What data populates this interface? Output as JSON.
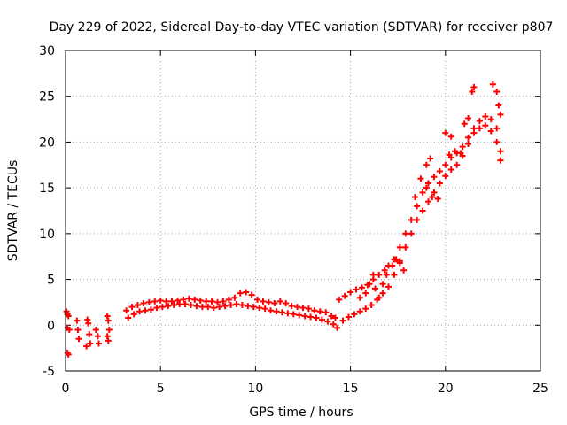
{
  "chart_data": {
    "type": "scatter",
    "title": "Day 229 of 2022, Sidereal Day-to-day VTEC variation (SDTVAR) for receiver p807",
    "xlabel": "GPS time / hours",
    "ylabel": "SDTVAR / TECUs",
    "xlim": [
      0,
      25
    ],
    "ylim": [
      -5,
      30
    ],
    "xticks": [
      "0",
      "5",
      "10",
      "15",
      "20",
      "25"
    ],
    "yticks": [
      "-5",
      "0",
      "5",
      "10",
      "15",
      "20",
      "25",
      "30"
    ],
    "grid": true,
    "marker": "+",
    "color": "#ff0000",
    "series": [
      {
        "name": "main-upper",
        "points": [
          [
            3.2,
            1.6
          ],
          [
            3.5,
            2.0
          ],
          [
            3.8,
            2.2
          ],
          [
            4.1,
            2.4
          ],
          [
            4.4,
            2.5
          ],
          [
            4.7,
            2.6
          ],
          [
            5.0,
            2.7
          ],
          [
            5.3,
            2.6
          ],
          [
            5.6,
            2.6
          ],
          [
            5.9,
            2.7
          ],
          [
            6.2,
            2.8
          ],
          [
            6.5,
            2.9
          ],
          [
            6.8,
            2.8
          ],
          [
            7.1,
            2.7
          ],
          [
            7.4,
            2.6
          ],
          [
            7.7,
            2.6
          ],
          [
            8.0,
            2.5
          ],
          [
            8.3,
            2.6
          ],
          [
            8.6,
            2.8
          ],
          [
            8.9,
            3.0
          ],
          [
            9.2,
            3.5
          ],
          [
            9.5,
            3.6
          ],
          [
            9.8,
            3.3
          ],
          [
            10.1,
            2.8
          ],
          [
            10.4,
            2.6
          ],
          [
            10.7,
            2.5
          ],
          [
            11.0,
            2.4
          ],
          [
            11.3,
            2.6
          ],
          [
            11.6,
            2.4
          ],
          [
            11.9,
            2.1
          ],
          [
            12.2,
            2.0
          ],
          [
            12.5,
            1.9
          ],
          [
            12.8,
            1.8
          ],
          [
            13.1,
            1.6
          ],
          [
            13.4,
            1.5
          ],
          [
            13.7,
            1.4
          ],
          [
            14.0,
            1.0
          ],
          [
            14.2,
            0.8
          ],
          [
            14.4,
            2.8
          ],
          [
            14.7,
            3.2
          ],
          [
            15.0,
            3.6
          ],
          [
            15.3,
            3.9
          ],
          [
            15.6,
            4.1
          ],
          [
            15.9,
            4.4
          ],
          [
            16.2,
            5.0
          ],
          [
            16.5,
            5.5
          ],
          [
            16.8,
            6.0
          ],
          [
            17.0,
            6.5
          ],
          [
            17.3,
            7.2
          ],
          [
            17.6,
            8.5
          ],
          [
            17.9,
            10.0
          ],
          [
            18.2,
            11.5
          ],
          [
            18.5,
            13.0
          ],
          [
            18.8,
            14.5
          ],
          [
            19.1,
            15.5
          ],
          [
            19.4,
            16.2
          ],
          [
            19.7,
            16.8
          ],
          [
            20.0,
            17.5
          ],
          [
            20.3,
            18.3
          ],
          [
            20.6,
            18.8
          ],
          [
            20.9,
            19.5
          ],
          [
            21.2,
            20.5
          ],
          [
            21.5,
            21.5
          ],
          [
            21.8,
            22.3
          ],
          [
            22.1,
            22.8
          ],
          [
            22.4,
            22.5
          ],
          [
            22.7,
            21.5
          ],
          [
            22.9,
            19.0
          ]
        ]
      },
      {
        "name": "main-lower",
        "points": [
          [
            3.3,
            0.8
          ],
          [
            3.6,
            1.2
          ],
          [
            3.9,
            1.5
          ],
          [
            4.2,
            1.6
          ],
          [
            4.5,
            1.7
          ],
          [
            4.8,
            1.9
          ],
          [
            5.1,
            2.0
          ],
          [
            5.4,
            2.1
          ],
          [
            5.7,
            2.2
          ],
          [
            6.0,
            2.3
          ],
          [
            6.3,
            2.3
          ],
          [
            6.6,
            2.2
          ],
          [
            6.9,
            2.1
          ],
          [
            7.2,
            2.0
          ],
          [
            7.5,
            2.0
          ],
          [
            7.8,
            1.9
          ],
          [
            8.1,
            2.0
          ],
          [
            8.4,
            2.1
          ],
          [
            8.7,
            2.2
          ],
          [
            9.0,
            2.3
          ],
          [
            9.3,
            2.2
          ],
          [
            9.6,
            2.1
          ],
          [
            9.9,
            2.0
          ],
          [
            10.2,
            1.9
          ],
          [
            10.5,
            1.8
          ],
          [
            10.8,
            1.6
          ],
          [
            11.1,
            1.5
          ],
          [
            11.4,
            1.4
          ],
          [
            11.7,
            1.3
          ],
          [
            12.0,
            1.2
          ],
          [
            12.3,
            1.1
          ],
          [
            12.6,
            1.0
          ],
          [
            12.9,
            0.9
          ],
          [
            13.2,
            0.8
          ],
          [
            13.5,
            0.6
          ],
          [
            13.8,
            0.4
          ],
          [
            14.1,
            0.1
          ],
          [
            14.3,
            -0.3
          ],
          [
            14.6,
            0.5
          ],
          [
            14.9,
            0.9
          ],
          [
            15.2,
            1.2
          ],
          [
            15.5,
            1.5
          ],
          [
            15.8,
            1.8
          ],
          [
            16.1,
            2.2
          ],
          [
            16.4,
            2.8
          ],
          [
            16.7,
            3.5
          ],
          [
            17.0,
            4.2
          ],
          [
            17.3,
            5.5
          ],
          [
            17.6,
            7.0
          ],
          [
            17.9,
            8.5
          ],
          [
            18.2,
            10.0
          ],
          [
            18.5,
            11.5
          ],
          [
            18.8,
            12.5
          ],
          [
            19.1,
            13.5
          ],
          [
            19.4,
            14.5
          ],
          [
            19.7,
            15.5
          ],
          [
            20.0,
            16.3
          ],
          [
            20.3,
            17.0
          ],
          [
            20.6,
            17.5
          ],
          [
            20.9,
            18.5
          ],
          [
            21.2,
            19.8
          ],
          [
            21.5,
            21.0
          ],
          [
            21.8,
            21.5
          ],
          [
            22.1,
            21.8
          ],
          [
            22.4,
            21.2
          ],
          [
            22.7,
            20.0
          ],
          [
            22.9,
            18.0
          ]
        ]
      },
      {
        "name": "secondary-arcs",
        "points": [
          [
            15.5,
            3.0
          ],
          [
            15.8,
            3.5
          ],
          [
            16.0,
            4.5
          ],
          [
            16.2,
            5.5
          ],
          [
            16.3,
            4.0
          ],
          [
            16.5,
            3.0
          ],
          [
            16.7,
            4.5
          ],
          [
            16.9,
            5.5
          ],
          [
            17.2,
            6.5
          ],
          [
            17.4,
            7.2
          ],
          [
            17.6,
            6.8
          ],
          [
            17.8,
            6.0
          ],
          [
            18.4,
            14.0
          ],
          [
            18.7,
            16.0
          ],
          [
            19.0,
            17.5
          ],
          [
            19.2,
            18.2
          ],
          [
            19.0,
            15.0
          ],
          [
            19.3,
            14.0
          ],
          [
            19.6,
            13.8
          ],
          [
            20.2,
            18.6
          ],
          [
            20.5,
            19.0
          ],
          [
            20.8,
            18.8
          ],
          [
            20.0,
            21.0
          ],
          [
            20.3,
            20.6
          ],
          [
            21.0,
            22.0
          ],
          [
            21.2,
            22.6
          ],
          [
            21.4,
            25.5
          ],
          [
            21.5,
            26.0
          ],
          [
            22.5,
            26.3
          ],
          [
            22.7,
            25.5
          ],
          [
            22.8,
            24.0
          ],
          [
            22.9,
            23.0
          ]
        ]
      },
      {
        "name": "early-scatter",
        "points": [
          [
            0.05,
            1.5
          ],
          [
            0.1,
            1.2
          ],
          [
            0.15,
            1.0
          ],
          [
            0.1,
            -0.3
          ],
          [
            0.2,
            -0.5
          ],
          [
            0.1,
            -3.0
          ],
          [
            0.15,
            -3.2
          ],
          [
            0.6,
            0.5
          ],
          [
            0.65,
            -0.5
          ],
          [
            0.7,
            -1.5
          ],
          [
            1.15,
            0.6
          ],
          [
            1.2,
            0.2
          ],
          [
            1.25,
            -1.0
          ],
          [
            1.3,
            -2.0
          ],
          [
            1.1,
            -2.3
          ],
          [
            1.6,
            -0.5
          ],
          [
            1.7,
            -1.2
          ],
          [
            1.75,
            -2.0
          ],
          [
            2.2,
            1.0
          ],
          [
            2.25,
            0.5
          ],
          [
            2.3,
            -0.5
          ],
          [
            2.2,
            -1.2
          ],
          [
            2.25,
            -1.7
          ]
        ]
      }
    ]
  }
}
